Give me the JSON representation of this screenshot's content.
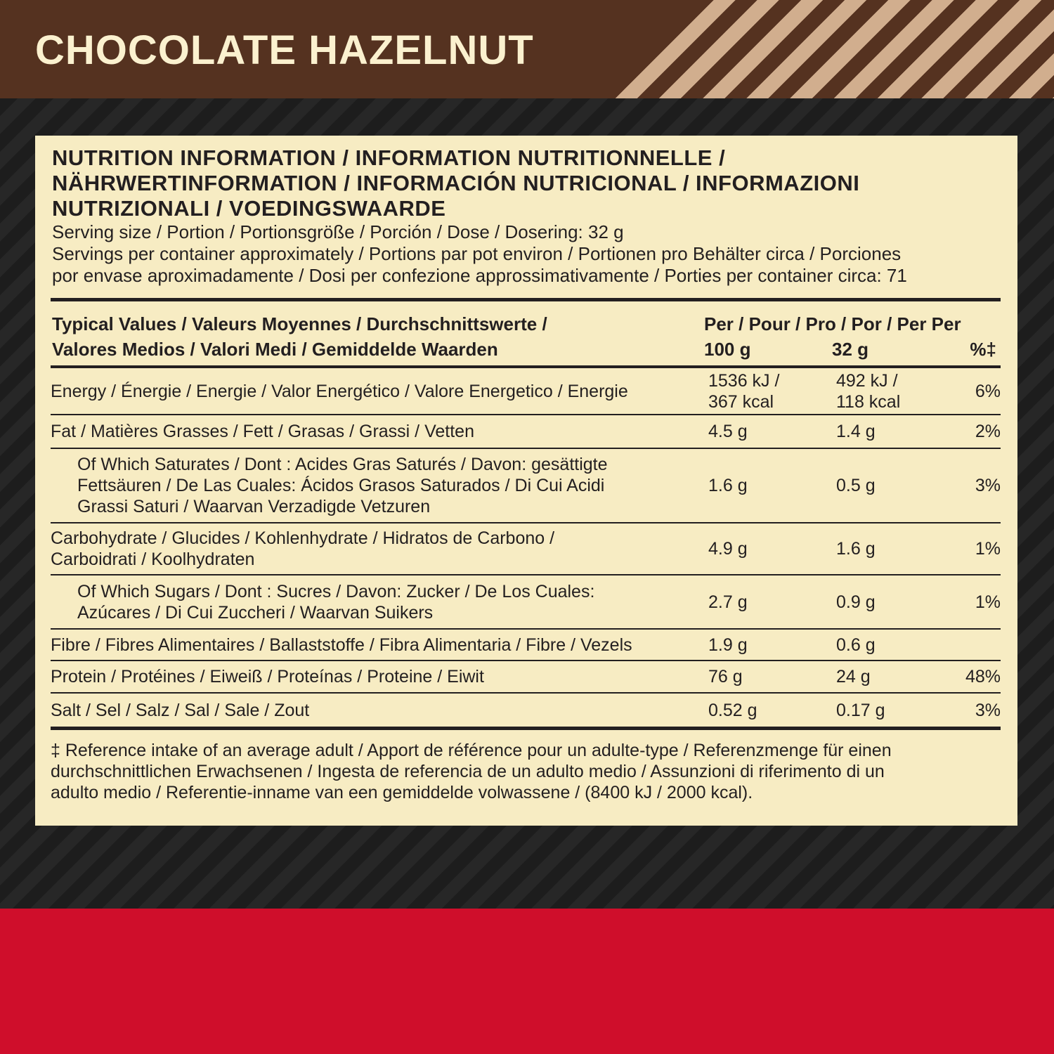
{
  "header": {
    "title": "CHOCOLATE HAZELNUT"
  },
  "panel": {
    "heading": [
      "NUTRITION INFORMATION / INFORMATION NUTRITIONNELLE /",
      "NÄHRWERTINFORMATION / INFORMACIÓN NUTRICIONAL / INFORMAZIONI",
      "NUTRIZIONALI / VOEDINGSWAARDE"
    ],
    "serving": [
      "Serving size / Portion / Portionsgröße / Porción / Dose / Dosering: 32 g",
      "Servings per container approximately / Portions par pot environ / Portionen pro Behälter circa / Porciones",
      "por envase aproximadamente / Dosi per confezione approssimativamente / Porties per container circa: 71"
    ],
    "table": {
      "header": {
        "label": [
          "Typical Values / Valeurs Moyennes / Durchschnittswerte /",
          "Valores Medios / Valori Medi / Gemiddelde Waarden"
        ],
        "per": "Per / Pour / Pro / Por / Per Per",
        "units": [
          "100 g",
          "32 g",
          "%‡"
        ]
      },
      "rows": [
        {
          "label": [
            "Energy / Énergie / Energie / Valor Energético / Valore Energetico / Energie"
          ],
          "per100": [
            "1536 kJ /",
            "367 kcal"
          ],
          "perServing": [
            "492 kJ /",
            "118 kcal"
          ],
          "ri": "6%"
        },
        {
          "label": [
            "Fat / Matières Grasses / Fett / Grasas / Grassi / Vetten"
          ],
          "per100": [
            "4.5 g"
          ],
          "perServing": [
            "1.4 g"
          ],
          "ri": "2%"
        },
        {
          "label": [
            "Of Which Saturates / Dont : Acides Gras Saturés / Davon: gesättigte",
            "Fettsäuren / De Las Cuales: Ácidos Grasos Saturados / Di Cui Acidi",
            "Grassi Saturi / Waarvan Verzadigde Vetzuren"
          ],
          "per100": [
            "1.6 g"
          ],
          "perServing": [
            "0.5 g"
          ],
          "ri": "3%"
        },
        {
          "label": [
            "Carbohydrate / Glucides / Kohlenhydrate / Hidratos de Carbono /",
            "Carboidrati / Koolhydraten"
          ],
          "per100": [
            "4.9 g"
          ],
          "perServing": [
            "1.6 g"
          ],
          "ri": "1%"
        },
        {
          "label": [
            "Of Which Sugars / Dont : Sucres / Davon: Zucker / De Los Cuales:",
            "Azúcares / Di Cui Zuccheri / Waarvan Suikers"
          ],
          "per100": [
            "2.7 g"
          ],
          "perServing": [
            "0.9 g"
          ],
          "ri": "1%"
        },
        {
          "label": [
            "Fibre / Fibres Alimentaires / Ballaststoffe / Fibra Alimentaria / Fibre / Vezels"
          ],
          "per100": [
            "1.9 g"
          ],
          "perServing": [
            "0.6 g"
          ],
          "ri": null
        },
        {
          "label": [
            "Protein / Protéines / Eiweiß / Proteínas / Proteine / Eiwit"
          ],
          "per100": [
            "76 g"
          ],
          "perServing": [
            "24 g"
          ],
          "ri": "48%"
        },
        {
          "label": [
            "Salt / Sel / Salz / Sal / Sale / Zout"
          ],
          "per100": [
            "0.52 g"
          ],
          "perServing": [
            "0.17 g"
          ],
          "ri": "3%"
        }
      ]
    },
    "footnote": [
      "‡ Reference intake of an average adult / Apport de référence pour un adulte-type / Referenzmenge für einen",
      "durchschnittlichen Erwachsenen / Ingesta de referencia de un adulto medio / Assunzioni di riferimento di un",
      "adulto medio / Referentie-inname van een gemiddelde volwassene / (8400 kJ / 2000 kcal)."
    ]
  }
}
